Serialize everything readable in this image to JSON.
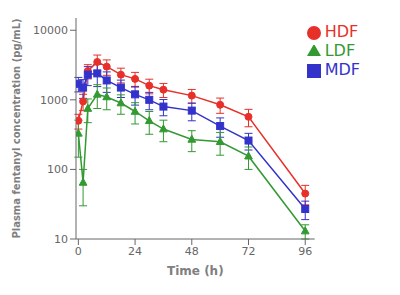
{
  "chart_data": {
    "type": "line",
    "x": [
      0,
      2,
      4,
      8,
      12,
      18,
      24,
      30,
      36,
      48,
      60,
      72,
      96
    ],
    "series": [
      {
        "name": "HDF",
        "color": "#e8302a",
        "marker": "circle",
        "values": [
          500,
          950,
          2600,
          3500,
          3000,
          2300,
          2000,
          1600,
          1400,
          1150,
          850,
          570,
          45
        ],
        "error_lo": [
          120,
          250,
          600,
          900,
          750,
          550,
          480,
          380,
          320,
          260,
          210,
          160,
          14
        ],
        "error_hi": [
          120,
          250,
          600,
          900,
          750,
          550,
          480,
          380,
          320,
          260,
          210,
          160,
          14
        ]
      },
      {
        "name": "MDF",
        "color": "#3333cc",
        "marker": "square",
        "values": [
          1700,
          1500,
          2300,
          2400,
          1900,
          1500,
          1200,
          1000,
          800,
          700,
          420,
          260,
          27
        ],
        "error_lo": [
          400,
          450,
          700,
          850,
          620,
          420,
          360,
          280,
          210,
          200,
          130,
          70,
          8
        ],
        "error_hi": [
          400,
          450,
          700,
          850,
          620,
          420,
          360,
          280,
          210,
          200,
          130,
          70,
          8
        ]
      },
      {
        "name": "LDF",
        "color": "#339933",
        "marker": "triangle",
        "values": [
          330,
          65,
          750,
          1200,
          1100,
          900,
          680,
          500,
          380,
          270,
          250,
          155,
          13
        ],
        "error_lo": [
          180,
          35,
          280,
          450,
          380,
          280,
          230,
          180,
          130,
          90,
          90,
          55,
          3
        ],
        "error_hi": [
          180,
          35,
          280,
          450,
          380,
          280,
          230,
          180,
          130,
          90,
          90,
          55,
          3
        ]
      }
    ],
    "xlabel": "Time (h)",
    "ylabel": "Plasma fentanyl concentration (pg/mL)",
    "xlim": [
      -1,
      100
    ],
    "xticks": [
      0,
      24,
      48,
      72,
      96
    ],
    "ylim": [
      10,
      15000
    ],
    "yticks": [
      10,
      100,
      1000,
      10000
    ],
    "log": "y",
    "legend": "upper right",
    "grid": false
  }
}
